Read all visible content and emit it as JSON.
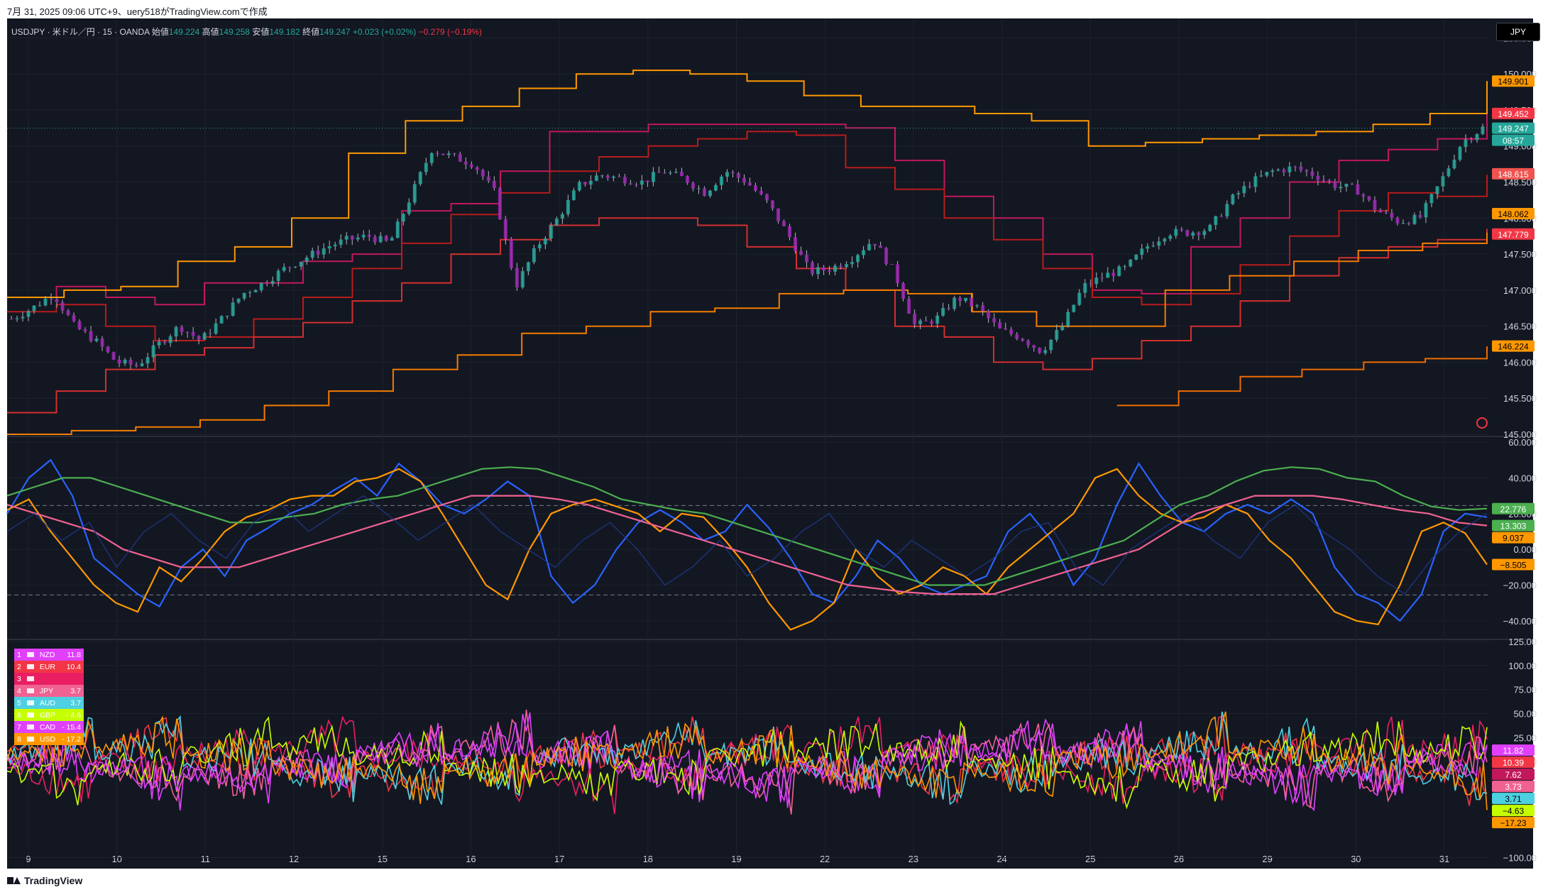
{
  "header": {
    "watermark": "7月 31, 2025 09:06 UTC+9、uery518がTradingView.comで作成",
    "symbol": "USDJPY · 米ドル／円 · 15 · OANDA",
    "open_label": "始値",
    "open": "149.224",
    "high_label": "高値",
    "high": "149.258",
    "low_label": "安値",
    "low": "149.182",
    "close_label": "終値",
    "close": "149.247",
    "change": "+0.023 (+0.02%)",
    "change2": "−0.279 (−0.19%)",
    "currency_button": "JPY"
  },
  "footer": {
    "brand": "TradingView"
  },
  "colors": {
    "background": "#131722",
    "grid": "#1e222d",
    "bull": "#26a69a",
    "bear": "#9c27b0",
    "band_red": "#c2185b",
    "band_orange": "#ff9800"
  },
  "chart_data": [
    {
      "type": "candlestick",
      "title": "USDJPY 15m with Donchian channels",
      "ylim": [
        145.0,
        150.75
      ],
      "y_ticks": [
        "150.500",
        "150.000",
        "149.500",
        "149.000",
        "148.500",
        "148.000",
        "147.500",
        "147.000",
        "146.500",
        "146.000",
        "145.500",
        "145.000"
      ],
      "x_ticks": [
        "9",
        "10",
        "11",
        "12",
        "15",
        "16",
        "17",
        "18",
        "19",
        "22",
        "23",
        "24",
        "25",
        "26",
        "29",
        "30",
        "31"
      ],
      "price_path": [
        146.6,
        146.75,
        146.95,
        146.5,
        146.3,
        146.0,
        145.95,
        146.25,
        146.5,
        146.3,
        146.6,
        146.95,
        147.1,
        147.3,
        147.45,
        147.6,
        147.7,
        147.75,
        147.65,
        148.3,
        148.95,
        148.85,
        148.75,
        148.35,
        147.05,
        147.6,
        148.0,
        148.45,
        148.6,
        148.55,
        148.5,
        148.65,
        148.55,
        148.35,
        148.65,
        148.5,
        148.2,
        147.75,
        147.25,
        147.3,
        147.45,
        147.7,
        147.25,
        146.5,
        146.6,
        146.9,
        146.75,
        146.45,
        146.35,
        146.15,
        146.5,
        147.05,
        147.2,
        147.3,
        147.6,
        147.8,
        147.8,
        147.85,
        148.25,
        148.5,
        148.65,
        148.7,
        148.6,
        148.45,
        148.4,
        148.1,
        147.95,
        148.0,
        148.5,
        149.05,
        149.25
      ],
      "bands": [
        {
          "color": "#c2185b",
          "values": [
            146.9,
            147.05,
            146.9,
            146.8,
            147.1,
            147.1,
            147.4,
            147.5,
            148.1,
            148.2,
            148.65,
            149.2,
            149.2,
            149.3,
            149.3,
            149.3,
            149.3,
            149.25,
            148.8,
            148.3,
            148.0,
            147.5,
            147.0,
            146.95,
            147.6,
            148.0,
            148.5,
            148.8,
            148.95,
            149.1,
            149.45
          ]
        },
        {
          "color": "#b71c1c",
          "values": [
            146.7,
            146.8,
            146.5,
            146.3,
            146.35,
            146.6,
            146.9,
            147.3,
            147.65,
            148.05,
            148.35,
            148.65,
            148.85,
            149.0,
            149.1,
            149.2,
            149.15,
            148.7,
            148.4,
            148.0,
            147.7,
            147.3,
            146.9,
            146.8,
            146.95,
            147.35,
            147.75,
            148.1,
            148.35,
            148.3,
            148.6
          ]
        },
        {
          "color": "#d32f2f",
          "values": [
            145.3,
            145.6,
            145.9,
            146.1,
            146.2,
            146.35,
            146.55,
            146.85,
            147.1,
            147.5,
            147.7,
            147.9,
            148.0,
            148.0,
            147.9,
            147.6,
            147.3,
            147.0,
            146.5,
            146.35,
            146.0,
            145.9,
            146.05,
            146.3,
            146.5,
            146.85,
            147.2,
            147.45,
            147.6,
            147.7,
            147.85
          ]
        },
        {
          "color": "#ff9800",
          "values": [
            146.9,
            147.0,
            147.05,
            147.4,
            147.6,
            148.0,
            148.9,
            149.35,
            149.55,
            149.8,
            150.0,
            150.05,
            150.0,
            149.9,
            149.7,
            149.55,
            149.55,
            149.45,
            149.35,
            149.0,
            149.05,
            149.1,
            149.15,
            149.2,
            149.3,
            149.45,
            149.9
          ]
        },
        {
          "color": "#f57c00",
          "values": [
            145.0,
            145.05,
            145.1,
            145.2,
            145.4,
            145.6,
            145.9,
            146.1,
            146.4,
            146.5,
            146.7,
            146.75,
            146.95,
            147.0,
            146.95,
            146.7,
            146.5,
            146.5,
            147.0,
            147.2,
            147.4,
            147.55,
            147.65,
            147.8
          ]
        },
        {
          "color": "#ef6c00",
          "values": [
            null,
            null,
            null,
            null,
            null,
            null,
            null,
            null,
            null,
            null,
            null,
            null,
            null,
            null,
            null,
            null,
            null,
            null,
            145.4,
            145.6,
            145.8,
            145.9,
            146.0,
            146.05,
            146.22
          ]
        }
      ],
      "price_labels": [
        {
          "text": "149.901",
          "value": 149.901,
          "color": "#ff9800",
          "text_color": "#000"
        },
        {
          "text": "149.452",
          "value": 149.452,
          "color": "#f23645",
          "text_color": "#fff"
        },
        {
          "text": "149.247",
          "value": 149.247,
          "color": "#26a69a",
          "text_color": "#fff"
        },
        {
          "text": "08:57",
          "value": 149.247,
          "color": "#26a69a",
          "text_color": "#fff"
        },
        {
          "text": "148.615",
          "value": 148.615,
          "color": "#ef5350",
          "text_color": "#fff"
        },
        {
          "text": "148.062",
          "value": 148.062,
          "color": "#ff9800",
          "text_color": "#000"
        },
        {
          "text": "147.779",
          "value": 147.779,
          "color": "#f23645",
          "text_color": "#fff"
        },
        {
          "text": "146.224",
          "value": 146.224,
          "color": "#ff9800",
          "text_color": "#000"
        }
      ]
    },
    {
      "type": "line",
      "title": "Oscillators",
      "ylim": [
        -50,
        62
      ],
      "y_ticks": [
        "60.000",
        "40.000",
        "20.000",
        "0.000",
        "−20.000",
        "−40.000"
      ],
      "levels": [
        24.5,
        -25.5
      ],
      "series": [
        {
          "color": "#2962ff",
          "values": [
            20,
            40,
            50,
            30,
            -5,
            -15,
            -25,
            -32,
            -10,
            0,
            -15,
            5,
            12,
            20,
            25,
            33,
            40,
            30,
            48,
            38,
            25,
            20,
            28,
            38,
            30,
            -15,
            -30,
            -20,
            0,
            15,
            22,
            15,
            5,
            10,
            25,
            12,
            -5,
            -25,
            -30,
            -15,
            5,
            -5,
            -20,
            -25,
            -20,
            -15,
            10,
            20,
            5,
            -20,
            -5,
            25,
            48,
            30,
            15,
            10,
            20,
            25,
            20,
            28,
            20,
            -10,
            -25,
            -30,
            -40,
            -25,
            10,
            20,
            18
          ]
        },
        {
          "color": "#ff9800",
          "values": [
            22,
            28,
            10,
            -5,
            -20,
            -30,
            -35,
            -10,
            -18,
            -5,
            10,
            18,
            22,
            28,
            30,
            30,
            38,
            40,
            45,
            38,
            20,
            0,
            -20,
            -28,
            0,
            20,
            25,
            28,
            24,
            20,
            10,
            20,
            18,
            5,
            -10,
            -30,
            -45,
            -40,
            -30,
            0,
            -15,
            -25,
            -20,
            -10,
            -15,
            -25,
            -10,
            0,
            10,
            20,
            40,
            45,
            30,
            20,
            15,
            18,
            25,
            20,
            5,
            -5,
            -20,
            -35,
            -40,
            -42,
            -20,
            10,
            15,
            9,
            -8.5
          ]
        },
        {
          "color": "#4caf50",
          "values": [
            30,
            35,
            40,
            40,
            35,
            30,
            25,
            20,
            15,
            15,
            18,
            20,
            25,
            28,
            30,
            35,
            40,
            45,
            46,
            45,
            40,
            35,
            28,
            25,
            22,
            20,
            15,
            10,
            5,
            0,
            -5,
            -10,
            -15,
            -20,
            -20,
            -20,
            -15,
            -10,
            -5,
            0,
            5,
            15,
            25,
            30,
            38,
            44,
            46,
            45,
            40,
            38,
            30,
            24,
            22,
            22.8
          ]
        },
        {
          "color": "#f06292",
          "values": [
            25,
            20,
            15,
            10,
            0,
            -5,
            -10,
            -10,
            -10,
            -5,
            0,
            5,
            10,
            15,
            20,
            25,
            30,
            30,
            30,
            28,
            25,
            20,
            15,
            10,
            5,
            0,
            -5,
            -10,
            -15,
            -20,
            -22,
            -24,
            -25,
            -25,
            -25,
            -20,
            -15,
            -10,
            -5,
            0,
            10,
            20,
            25,
            30,
            30,
            30,
            28,
            25,
            22,
            20,
            15,
            13.3
          ]
        },
        {
          "color": "#1e3a8a",
          "values": [
            10,
            20,
            5,
            15,
            -10,
            10,
            20,
            5,
            -5,
            15,
            25,
            10,
            20,
            30,
            18,
            5,
            15,
            25,
            10,
            0,
            -10,
            5,
            15,
            0,
            -20,
            -10,
            5,
            -15,
            -5,
            10,
            20,
            0,
            -10,
            5,
            -5,
            -15,
            -5,
            10,
            15,
            -10,
            -20,
            0,
            10,
            20,
            5,
            -5,
            15,
            25,
            10,
            0,
            -15,
            -25,
            -5,
            10,
            20
          ]
        }
      ],
      "value_labels": [
        {
          "text": "22.776",
          "value": 22.776,
          "color": "#4caf50",
          "text_color": "#fff"
        },
        {
          "text": "13.303",
          "value": 13.303,
          "color": "#4caf50",
          "text_color": "#fff"
        },
        {
          "text": "9.037",
          "value": 9.037,
          "color": "#ff9800",
          "text_color": "#000"
        },
        {
          "text": "−8.505",
          "value": -8.505,
          "color": "#ff9800",
          "text_color": "#000"
        }
      ]
    },
    {
      "type": "line",
      "title": "Currency strength",
      "ylim": [
        -110,
        125
      ],
      "y_ticks": [
        "125.00",
        "100.00",
        "75.00",
        "50.00",
        "25.00",
        "0.00",
        "−100.00"
      ],
      "legend": [
        {
          "rank": "1",
          "name": "NZD",
          "value": "11.8",
          "color": "#e040fb"
        },
        {
          "rank": "2",
          "name": "EUR",
          "value": "10.4",
          "color": "#f23645"
        },
        {
          "rank": "3",
          "name": "",
          "value": "",
          "color": "#e91e63"
        },
        {
          "rank": "4",
          "name": "JPY",
          "value": "3.7",
          "color": "#f06292"
        },
        {
          "rank": "5",
          "name": "AUD",
          "value": "3.7",
          "color": "#4dd0e1"
        },
        {
          "rank": "6",
          "name": "GBP",
          "value": "- 4.6",
          "color": "#c6ff00"
        },
        {
          "rank": "7",
          "name": "CAD",
          "value": "- 15.4",
          "color": "#e040fb"
        },
        {
          "rank": "8",
          "name": "USD",
          "value": "- 17.2",
          "color": "#ff9800"
        }
      ],
      "value_labels": [
        {
          "text": "11.82",
          "value": 11.82,
          "color": "#e040fb",
          "text_color": "#fff"
        },
        {
          "text": "10.39",
          "value": 10.39,
          "color": "#f23645",
          "text_color": "#fff"
        },
        {
          "text": "7.62",
          "value": 7.62,
          "color": "#c2185b",
          "text_color": "#fff"
        },
        {
          "text": "3.73",
          "value": 3.73,
          "color": "#f06292",
          "text_color": "#fff"
        },
        {
          "text": "3.71",
          "value": 3.71,
          "color": "#4dd0e1",
          "text_color": "#000"
        },
        {
          "text": "−4.63",
          "value": -4.63,
          "color": "#c6ff00",
          "text_color": "#000"
        },
        {
          "text": "−17.23",
          "value": -17.23,
          "color": "#ff9800",
          "text_color": "#000"
        }
      ]
    }
  ]
}
